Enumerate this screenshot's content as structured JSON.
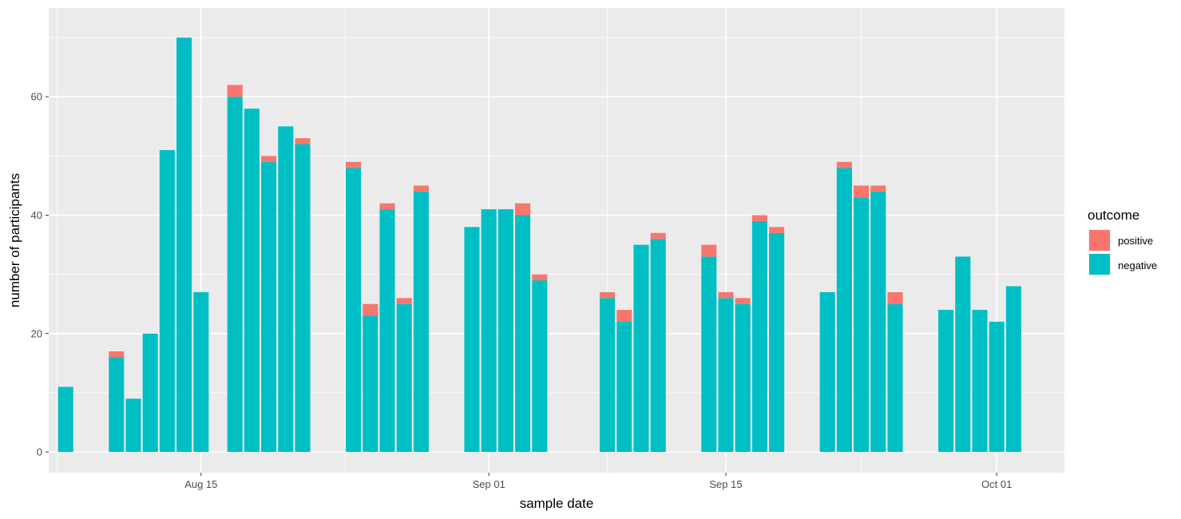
{
  "chart_data": {
    "type": "bar",
    "stacked": true,
    "xlabel": "sample date",
    "ylabel": "number of participants",
    "ylim": [
      -3.5,
      75
    ],
    "xlim": [
      "2020-08-06",
      "2020-10-05"
    ],
    "y_ticks": [
      0,
      20,
      40,
      60
    ],
    "x_ticks": [
      {
        "date": "2020-08-15",
        "label": "Aug 15"
      },
      {
        "date": "2020-09-01",
        "label": "Sep 01"
      },
      {
        "date": "2020-09-15",
        "label": "Sep 15"
      },
      {
        "date": "2020-10-01",
        "label": "Oct 01"
      }
    ],
    "grid": true,
    "legend": {
      "title": "outcome",
      "placement": "right",
      "entries": [
        {
          "label": "positive",
          "color": "#F8766D"
        },
        {
          "label": "negative",
          "color": "#00BFC4"
        }
      ]
    },
    "dates": [
      "2020-08-07",
      "2020-08-10",
      "2020-08-11",
      "2020-08-12",
      "2020-08-13",
      "2020-08-14",
      "2020-08-15",
      "2020-08-17",
      "2020-08-18",
      "2020-08-19",
      "2020-08-20",
      "2020-08-21",
      "2020-08-24",
      "2020-08-25",
      "2020-08-26",
      "2020-08-27",
      "2020-08-28",
      "2020-08-31",
      "2020-09-01",
      "2020-09-02",
      "2020-09-03",
      "2020-09-04",
      "2020-09-08",
      "2020-09-09",
      "2020-09-10",
      "2020-09-11",
      "2020-09-14",
      "2020-09-15",
      "2020-09-16",
      "2020-09-17",
      "2020-09-18",
      "2020-09-21",
      "2020-09-22",
      "2020-09-23",
      "2020-09-24",
      "2020-09-25",
      "2020-09-28",
      "2020-09-29",
      "2020-09-30",
      "2020-10-01",
      "2020-10-02"
    ],
    "series": [
      {
        "name": "negative",
        "color": "#00BFC4",
        "values": [
          11,
          16,
          9,
          20,
          51,
          70,
          27,
          60,
          58,
          49,
          55,
          52,
          48,
          23,
          41,
          25,
          44,
          38,
          41,
          41,
          40,
          29,
          26,
          22,
          35,
          36,
          33,
          26,
          25,
          39,
          37,
          27,
          48,
          43,
          44,
          25,
          24,
          33,
          24,
          22,
          28
        ]
      },
      {
        "name": "positive",
        "color": "#F8766D",
        "values": [
          0,
          1,
          0,
          0,
          0,
          0,
          0,
          2,
          0,
          1,
          0,
          1,
          1,
          2,
          1,
          1,
          1,
          0,
          0,
          0,
          2,
          1,
          1,
          2,
          0,
          1,
          2,
          1,
          1,
          1,
          1,
          0,
          1,
          2,
          1,
          2,
          0,
          0,
          0,
          0,
          0
        ]
      }
    ]
  }
}
